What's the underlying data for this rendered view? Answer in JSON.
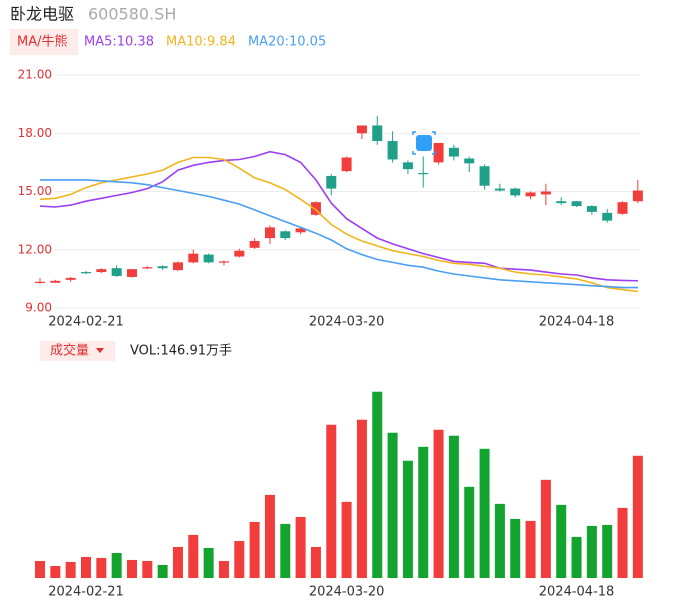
{
  "chart_data": {
    "type": "candlestick",
    "title": "卧龙电驱",
    "subtitle": "600580.SH",
    "indicator_label": "MA/牛熊",
    "categories": [
      null,
      null,
      null,
      "2024-02-21",
      null,
      null,
      null,
      null,
      null,
      null,
      null,
      null,
      null,
      null,
      null,
      null,
      null,
      null,
      null,
      null,
      "2024-03-20",
      null,
      null,
      null,
      null,
      null,
      null,
      null,
      null,
      null,
      null,
      null,
      null,
      null,
      null,
      "2024-04-18",
      null,
      null,
      null,
      null
    ],
    "open": [
      10.3,
      10.3,
      10.45,
      10.85,
      10.85,
      11.05,
      10.6,
      11.05,
      11.15,
      10.95,
      11.35,
      11.75,
      11.35,
      11.65,
      12.1,
      12.6,
      12.95,
      12.9,
      13.8,
      15.8,
      16.05,
      18.0,
      18.4,
      17.6,
      16.5,
      15.95,
      16.5,
      17.25,
      16.7,
      16.3,
      15.15,
      15.15,
      14.75,
      14.85,
      14.5,
      14.5,
      14.25,
      13.9,
      13.85,
      14.5
    ],
    "close": [
      10.35,
      10.4,
      10.55,
      10.8,
      11.0,
      10.65,
      11.0,
      11.1,
      11.05,
      11.35,
      11.8,
      11.35,
      11.4,
      11.95,
      12.45,
      13.15,
      12.6,
      13.1,
      14.45,
      15.15,
      16.75,
      18.4,
      17.6,
      16.65,
      16.15,
      15.9,
      17.5,
      16.8,
      16.45,
      15.3,
      15.05,
      14.8,
      14.95,
      15.0,
      14.4,
      14.25,
      13.95,
      13.5,
      14.45,
      15.05
    ],
    "high": [
      10.55,
      10.45,
      10.6,
      10.9,
      11.05,
      11.2,
      11.0,
      11.15,
      11.2,
      11.4,
      12.0,
      11.8,
      11.45,
      12.05,
      12.6,
      13.25,
      13.0,
      13.2,
      14.5,
      15.9,
      16.8,
      18.4,
      18.9,
      18.1,
      16.6,
      16.8,
      17.5,
      17.4,
      16.8,
      16.4,
      15.4,
      15.2,
      15.0,
      15.4,
      14.7,
      14.5,
      14.3,
      14.1,
      14.5,
      15.6
    ],
    "low": [
      10.25,
      10.3,
      10.35,
      10.75,
      10.8,
      10.6,
      10.55,
      11.0,
      10.95,
      10.9,
      11.3,
      11.3,
      11.2,
      11.6,
      12.05,
      12.3,
      12.5,
      12.8,
      13.75,
      14.8,
      16.0,
      17.7,
      17.4,
      16.5,
      15.9,
      15.2,
      16.4,
      16.6,
      16.0,
      15.1,
      15.0,
      14.7,
      14.6,
      14.3,
      14.3,
      14.2,
      13.8,
      13.4,
      13.8,
      14.4
    ],
    "up_color": "#f23d3d",
    "down_color": "#20a08a",
    "ylim": [
      9,
      21
    ],
    "yticks": [
      {
        "value": 9,
        "label": "9.00"
      },
      {
        "value": 12,
        "label": "12.00"
      },
      {
        "value": 15,
        "label": "15.00"
      },
      {
        "value": 18,
        "label": "18.00"
      },
      {
        "value": 21,
        "label": "21.00"
      }
    ],
    "grid": true,
    "series": [
      {
        "name": "MA5:10.38",
        "color": "#9b3ff0",
        "values": [
          14.25,
          14.2,
          14.3,
          14.5,
          14.65,
          14.8,
          14.95,
          15.15,
          15.5,
          16.1,
          16.35,
          16.5,
          16.6,
          16.65,
          16.8,
          17.05,
          16.9,
          16.5,
          15.6,
          14.4,
          13.6,
          13.1,
          12.6,
          12.3,
          12.05,
          11.8,
          11.6,
          11.4,
          11.35,
          11.3,
          11.05,
          11.0,
          10.95,
          10.85,
          10.75,
          10.7,
          10.55,
          10.45,
          10.42,
          10.4
        ]
      },
      {
        "name": "MA10:9.84",
        "color": "#f2b41e",
        "values": [
          14.6,
          14.65,
          14.85,
          15.2,
          15.45,
          15.6,
          15.75,
          15.9,
          16.1,
          16.5,
          16.75,
          16.75,
          16.65,
          16.2,
          15.7,
          15.45,
          15.1,
          14.6,
          14.05,
          13.3,
          12.8,
          12.45,
          12.2,
          11.95,
          11.8,
          11.65,
          11.45,
          11.3,
          11.25,
          11.15,
          11.05,
          10.85,
          10.75,
          10.7,
          10.6,
          10.5,
          10.3,
          10.05,
          9.95,
          9.85
        ]
      },
      {
        "name": "MA20:10.05",
        "color": "#4a9ff5",
        "values": [
          15.6,
          15.6,
          15.6,
          15.6,
          15.55,
          15.5,
          15.45,
          15.35,
          15.2,
          15.05,
          14.9,
          14.75,
          14.55,
          14.35,
          14.05,
          13.75,
          13.45,
          13.15,
          12.85,
          12.5,
          12.05,
          11.75,
          11.5,
          11.35,
          11.2,
          11.1,
          10.9,
          10.75,
          10.65,
          10.55,
          10.45,
          10.4,
          10.35,
          10.3,
          10.25,
          10.2,
          10.15,
          10.1,
          10.05,
          10.05
        ]
      }
    ],
    "volume": {
      "label": "成交量",
      "name": "VOL:146.91万手",
      "up_color": "#f23d3d",
      "down_color": "#12a42e",
      "ylim": [
        0,
        250
      ],
      "values": [
        20.5,
        14.4,
        19.3,
        25.3,
        24.1,
        30.1,
        21.7,
        20.5,
        15.7,
        37.3,
        51.8,
        36.1,
        20.5,
        44.5,
        67.4,
        99.9,
        65.0,
        73.4,
        37.3,
        184.2,
        91.5,
        190.2,
        223.9,
        174.6,
        140.9,
        157.7,
        178.2,
        171.0,
        109.6,
        155.3,
        89.1,
        71.0,
        68.6,
        118.0,
        87.9,
        49.4,
        62.6,
        63.8,
        84.3,
        146.91
      ]
    }
  }
}
